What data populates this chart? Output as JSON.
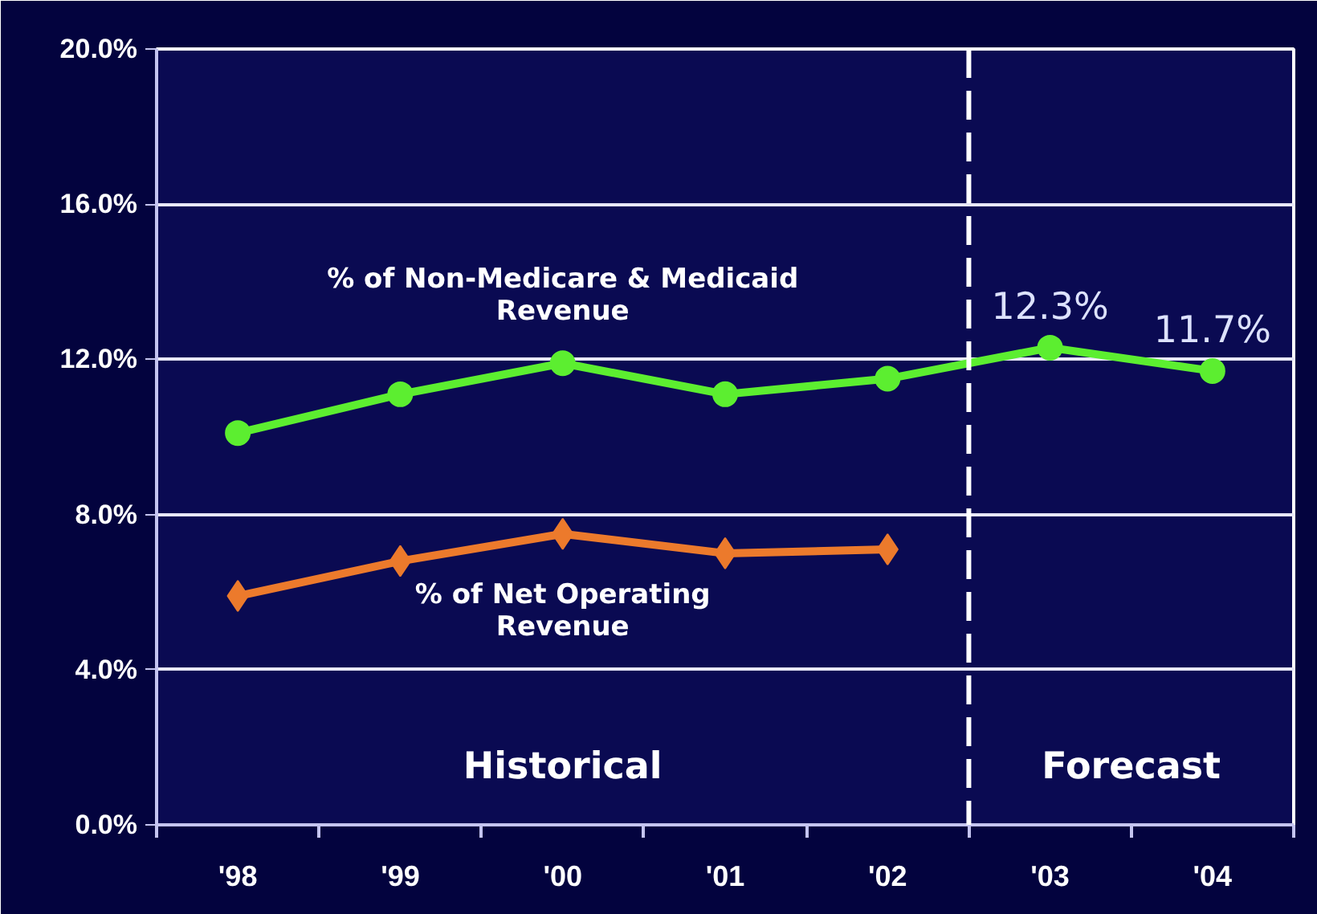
{
  "chart_data": {
    "type": "line",
    "x": [
      1998,
      1999,
      2000,
      2001,
      2002,
      2003,
      2004
    ],
    "xlim": [
      1997.5,
      2004.5
    ],
    "xticks": [
      {
        "value": 1998,
        "label": "'98"
      },
      {
        "value": 1999,
        "label": "'99"
      },
      {
        "value": 2000,
        "label": "'00"
      },
      {
        "value": 2001,
        "label": "'01"
      },
      {
        "value": 2002,
        "label": "'02"
      },
      {
        "value": 2003,
        "label": "'03"
      },
      {
        "value": 2004,
        "label": "'04"
      }
    ],
    "ylim": [
      0,
      20
    ],
    "yticks": [
      {
        "value": 0,
        "label": "0.0%"
      },
      {
        "value": 4,
        "label": "4.0%"
      },
      {
        "value": 8,
        "label": "8.0%"
      },
      {
        "value": 12,
        "label": "12.0%"
      },
      {
        "value": 16,
        "label": "16.0%"
      },
      {
        "value": 20,
        "label": "20.0%"
      }
    ],
    "grid": "y",
    "line_style": "solid",
    "series": [
      {
        "name": "% of Non-Medicare & Medicaid Revenue",
        "color": "#5cee30",
        "marker": "circle",
        "values": [
          10.1,
          11.1,
          11.9,
          11.1,
          11.5,
          12.3,
          11.7
        ],
        "value_labels": [
          null,
          null,
          null,
          null,
          null,
          "12.3%",
          "11.7%"
        ]
      },
      {
        "name": "% of Net Operating Revenue",
        "color": "#ec7a2c",
        "marker": "diamond",
        "x": [
          1998,
          1999,
          2000,
          2001,
          2002
        ],
        "values": [
          5.9,
          6.8,
          7.5,
          7.0,
          7.1
        ]
      }
    ],
    "ref_lines": [
      {
        "axis": "x",
        "value": 2002.5,
        "color": "#ffffff",
        "line_style": "dashed"
      }
    ],
    "annotations": [
      "Historical",
      "Forecast"
    ]
  }
}
